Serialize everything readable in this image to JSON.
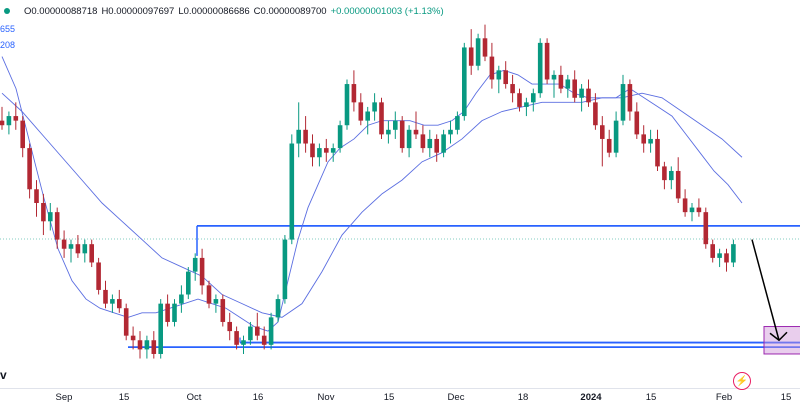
{
  "legend": {
    "open": "O0.00000088718",
    "high": "H0.00000097697",
    "low": "L0.00000086686",
    "close": "C0.00000089700",
    "change": "+0.00000001003 (+1.13%)",
    "indicator_1": "655",
    "indicator_2": "208"
  },
  "x_axis": {
    "ticks": [
      "Sep",
      "15",
      "Oct",
      "16",
      "Nov",
      "15",
      "Dec",
      "18",
      "2024",
      "15",
      "Feb",
      "15"
    ]
  },
  "brand": {
    "logo_text": "v"
  },
  "icons": {
    "legend_status": "status-dot-icon",
    "flash": "lightning-icon"
  },
  "colors": {
    "up": "#089981",
    "down": "#b22833",
    "ma": "#5b6ee1",
    "level_line": "#2962ff",
    "target_box": "#ce93d8",
    "arrow": "#000000"
  },
  "chart_data": {
    "type": "candlestick",
    "title": "",
    "xlabel": "",
    "ylabel": "",
    "x_ticks": [
      "Sep",
      "15",
      "Oct",
      "16",
      "Nov",
      "15",
      "Dec",
      "18",
      "2024",
      "15",
      "Feb",
      "15"
    ],
    "ylim": [
      0.8,
      1.6
    ],
    "candles": [
      [
        1.38,
        1.41,
        1.36,
        1.37
      ],
      [
        1.37,
        1.4,
        1.35,
        1.39
      ],
      [
        1.39,
        1.42,
        1.36,
        1.38
      ],
      [
        1.38,
        1.39,
        1.3,
        1.32
      ],
      [
        1.32,
        1.33,
        1.21,
        1.23
      ],
      [
        1.23,
        1.25,
        1.17,
        1.2
      ],
      [
        1.2,
        1.22,
        1.13,
        1.16
      ],
      [
        1.16,
        1.2,
        1.14,
        1.18
      ],
      [
        1.18,
        1.19,
        1.1,
        1.12
      ],
      [
        1.12,
        1.14,
        1.08,
        1.1
      ],
      [
        1.1,
        1.12,
        1.07,
        1.11
      ],
      [
        1.11,
        1.13,
        1.08,
        1.09
      ],
      [
        1.09,
        1.12,
        1.07,
        1.11
      ],
      [
        1.11,
        1.12,
        1.06,
        1.07
      ],
      [
        1.07,
        1.08,
        1.0,
        1.01
      ],
      [
        1.01,
        1.03,
        0.97,
        0.98
      ],
      [
        0.98,
        1.0,
        0.96,
        0.99
      ],
      [
        0.99,
        1.01,
        0.96,
        0.97
      ],
      [
        0.97,
        0.98,
        0.9,
        0.91
      ],
      [
        0.91,
        0.93,
        0.88,
        0.9
      ],
      [
        0.9,
        0.92,
        0.86,
        0.88
      ],
      [
        0.88,
        0.91,
        0.86,
        0.9
      ],
      [
        0.9,
        0.92,
        0.86,
        0.87
      ],
      [
        0.87,
        0.99,
        0.86,
        0.98
      ],
      [
        0.98,
        1.0,
        0.93,
        0.94
      ],
      [
        0.94,
        0.99,
        0.93,
        0.98
      ],
      [
        0.98,
        1.02,
        0.96,
        1.0
      ],
      [
        1.0,
        1.06,
        0.99,
        1.05
      ],
      [
        1.05,
        1.09,
        1.03,
        1.08
      ],
      [
        1.08,
        1.1,
        1.0,
        1.02
      ],
      [
        1.02,
        1.03,
        0.97,
        0.98
      ],
      [
        0.98,
        1.0,
        0.96,
        0.99
      ],
      [
        0.99,
        1.0,
        0.93,
        0.94
      ],
      [
        0.94,
        0.96,
        0.9,
        0.92
      ],
      [
        0.92,
        0.93,
        0.88,
        0.89
      ],
      [
        0.89,
        0.91,
        0.87,
        0.9
      ],
      [
        0.9,
        0.94,
        0.89,
        0.93
      ],
      [
        0.93,
        0.96,
        0.9,
        0.91
      ],
      [
        0.91,
        0.93,
        0.88,
        0.89
      ],
      [
        0.89,
        0.96,
        0.88,
        0.95
      ],
      [
        0.95,
        1.0,
        0.94,
        0.99
      ],
      [
        0.99,
        1.13,
        0.98,
        1.12
      ],
      [
        1.12,
        1.35,
        1.11,
        1.33
      ],
      [
        1.33,
        1.42,
        1.3,
        1.36
      ],
      [
        1.36,
        1.39,
        1.31,
        1.33
      ],
      [
        1.33,
        1.35,
        1.28,
        1.3
      ],
      [
        1.3,
        1.33,
        1.28,
        1.32
      ],
      [
        1.32,
        1.34,
        1.29,
        1.31
      ],
      [
        1.31,
        1.33,
        1.29,
        1.32
      ],
      [
        1.32,
        1.38,
        1.31,
        1.37
      ],
      [
        1.37,
        1.47,
        1.36,
        1.46
      ],
      [
        1.46,
        1.49,
        1.4,
        1.42
      ],
      [
        1.42,
        1.44,
        1.37,
        1.38
      ],
      [
        1.38,
        1.41,
        1.35,
        1.4
      ],
      [
        1.4,
        1.44,
        1.38,
        1.42
      ],
      [
        1.42,
        1.43,
        1.34,
        1.35
      ],
      [
        1.35,
        1.38,
        1.33,
        1.36
      ],
      [
        1.36,
        1.4,
        1.34,
        1.38
      ],
      [
        1.38,
        1.39,
        1.31,
        1.32
      ],
      [
        1.32,
        1.37,
        1.3,
        1.36
      ],
      [
        1.36,
        1.4,
        1.34,
        1.35
      ],
      [
        1.35,
        1.37,
        1.31,
        1.32
      ],
      [
        1.32,
        1.36,
        1.3,
        1.34
      ],
      [
        1.34,
        1.35,
        1.29,
        1.31
      ],
      [
        1.31,
        1.36,
        1.3,
        1.35
      ],
      [
        1.35,
        1.38,
        1.33,
        1.36
      ],
      [
        1.36,
        1.4,
        1.35,
        1.39
      ],
      [
        1.39,
        1.55,
        1.38,
        1.54
      ],
      [
        1.54,
        1.58,
        1.48,
        1.5
      ],
      [
        1.5,
        1.57,
        1.49,
        1.56
      ],
      [
        1.56,
        1.59,
        1.51,
        1.52
      ],
      [
        1.52,
        1.55,
        1.45,
        1.47
      ],
      [
        1.47,
        1.5,
        1.44,
        1.49
      ],
      [
        1.49,
        1.51,
        1.45,
        1.46
      ],
      [
        1.46,
        1.48,
        1.42,
        1.44
      ],
      [
        1.44,
        1.45,
        1.4,
        1.41
      ],
      [
        1.41,
        1.43,
        1.39,
        1.42
      ],
      [
        1.42,
        1.45,
        1.4,
        1.44
      ],
      [
        1.44,
        1.56,
        1.43,
        1.55
      ],
      [
        1.55,
        1.56,
        1.46,
        1.47
      ],
      [
        1.47,
        1.49,
        1.43,
        1.48
      ],
      [
        1.48,
        1.5,
        1.44,
        1.45
      ],
      [
        1.45,
        1.48,
        1.43,
        1.47
      ],
      [
        1.47,
        1.49,
        1.42,
        1.43
      ],
      [
        1.43,
        1.46,
        1.4,
        1.45
      ],
      [
        1.45,
        1.47,
        1.41,
        1.42
      ],
      [
        1.42,
        1.44,
        1.36,
        1.37
      ],
      [
        1.37,
        1.39,
        1.28,
        1.34
      ],
      [
        1.34,
        1.36,
        1.3,
        1.31
      ],
      [
        1.31,
        1.4,
        1.3,
        1.38
      ],
      [
        1.38,
        1.48,
        1.37,
        1.46
      ],
      [
        1.46,
        1.47,
        1.38,
        1.4
      ],
      [
        1.4,
        1.42,
        1.34,
        1.35
      ],
      [
        1.35,
        1.37,
        1.31,
        1.33
      ],
      [
        1.33,
        1.36,
        1.31,
        1.34
      ],
      [
        1.34,
        1.36,
        1.27,
        1.28
      ],
      [
        1.28,
        1.29,
        1.23,
        1.25
      ],
      [
        1.25,
        1.28,
        1.23,
        1.27
      ],
      [
        1.27,
        1.3,
        1.2,
        1.21
      ],
      [
        1.21,
        1.23,
        1.17,
        1.18
      ],
      [
        1.18,
        1.2,
        1.16,
        1.19
      ],
      [
        1.19,
        1.21,
        1.17,
        1.18
      ],
      [
        1.18,
        1.19,
        1.1,
        1.11
      ],
      [
        1.11,
        1.12,
        1.07,
        1.08
      ],
      [
        1.08,
        1.1,
        1.06,
        1.09
      ],
      [
        1.09,
        1.1,
        1.05,
        1.07
      ],
      [
        1.07,
        1.12,
        1.06,
        1.11
      ]
    ],
    "ma_fast": [
      [
        0,
        1.52
      ],
      [
        14,
        1.45
      ],
      [
        28,
        1.33
      ],
      [
        42,
        1.21
      ],
      [
        56,
        1.1
      ],
      [
        70,
        1.03
      ],
      [
        84,
        0.99
      ],
      [
        98,
        0.97
      ],
      [
        112,
        0.96
      ],
      [
        126,
        0.95
      ],
      [
        140,
        0.96
      ],
      [
        154,
        0.96
      ],
      [
        168,
        0.97
      ],
      [
        182,
        0.98
      ],
      [
        196,
        0.99
      ],
      [
        210,
        0.98
      ],
      [
        224,
        0.97
      ],
      [
        238,
        0.95
      ],
      [
        252,
        0.93
      ],
      [
        266,
        0.92
      ],
      [
        276,
        0.94
      ],
      [
        286,
        1.03
      ],
      [
        296,
        1.12
      ],
      [
        306,
        1.19
      ],
      [
        316,
        1.24
      ],
      [
        326,
        1.29
      ],
      [
        338,
        1.32
      ],
      [
        352,
        1.34
      ],
      [
        366,
        1.37
      ],
      [
        380,
        1.38
      ],
      [
        394,
        1.38
      ],
      [
        408,
        1.38
      ],
      [
        422,
        1.37
      ],
      [
        436,
        1.37
      ],
      [
        450,
        1.38
      ],
      [
        462,
        1.4
      ],
      [
        474,
        1.44
      ],
      [
        488,
        1.48
      ],
      [
        502,
        1.49
      ],
      [
        516,
        1.48
      ],
      [
        530,
        1.46
      ],
      [
        544,
        1.46
      ],
      [
        558,
        1.46
      ],
      [
        572,
        1.44
      ],
      [
        586,
        1.43
      ],
      [
        600,
        1.43
      ],
      [
        614,
        1.43
      ],
      [
        628,
        1.45
      ],
      [
        642,
        1.43
      ],
      [
        656,
        1.41
      ],
      [
        670,
        1.39
      ],
      [
        684,
        1.35
      ],
      [
        698,
        1.31
      ],
      [
        712,
        1.27
      ],
      [
        726,
        1.24
      ],
      [
        740,
        1.2
      ]
    ],
    "ma_slow": [
      [
        0,
        1.44
      ],
      [
        20,
        1.4
      ],
      [
        40,
        1.35
      ],
      [
        60,
        1.3
      ],
      [
        80,
        1.25
      ],
      [
        100,
        1.2
      ],
      [
        120,
        1.16
      ],
      [
        140,
        1.12
      ],
      [
        160,
        1.08
      ],
      [
        180,
        1.06
      ],
      [
        200,
        1.04
      ],
      [
        220,
        1.0
      ],
      [
        240,
        0.98
      ],
      [
        260,
        0.96
      ],
      [
        280,
        0.95
      ],
      [
        300,
        0.98
      ],
      [
        320,
        1.05
      ],
      [
        340,
        1.13
      ],
      [
        360,
        1.18
      ],
      [
        380,
        1.22
      ],
      [
        400,
        1.25
      ],
      [
        420,
        1.29
      ],
      [
        440,
        1.31
      ],
      [
        460,
        1.34
      ],
      [
        480,
        1.38
      ],
      [
        500,
        1.4
      ],
      [
        520,
        1.41
      ],
      [
        540,
        1.42
      ],
      [
        560,
        1.42
      ],
      [
        580,
        1.42
      ],
      [
        600,
        1.43
      ],
      [
        620,
        1.43
      ],
      [
        640,
        1.44
      ],
      [
        660,
        1.43
      ],
      [
        680,
        1.4
      ],
      [
        700,
        1.37
      ],
      [
        720,
        1.34
      ],
      [
        740,
        1.3
      ]
    ],
    "horizontal_levels": [
      {
        "value": 1.15,
        "from_index": 56
      },
      {
        "value": 0.895,
        "from_index": 56
      },
      {
        "value": 0.885,
        "from_index": 37
      }
    ],
    "projection": {
      "from_value": 1.12,
      "to_value": 0.9
    },
    "target_zone": [
      0.87,
      0.93
    ]
  }
}
